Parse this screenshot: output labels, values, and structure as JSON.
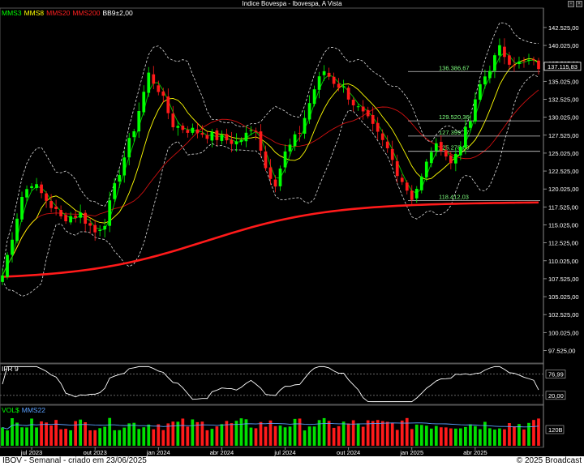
{
  "window": {
    "title": "Indice Bovespa - Ibovespa, A Vista",
    "buttons": [
      "▫",
      "×"
    ]
  },
  "legend": [
    {
      "label": "MMS3",
      "color": "#00ff00"
    },
    {
      "label": "MMS8",
      "color": "#ffff00"
    },
    {
      "label": "MMS20",
      "color": "#ff2020"
    },
    {
      "label": "MMS200",
      "color": "#ff2020"
    },
    {
      "label": "BB9±2,00",
      "color": "#ffffff"
    }
  ],
  "footer": {
    "left": "IBOV - Semanal - criado em 23/06/2025",
    "right": "© 2025 Broadcast"
  },
  "chart_data": [
    {
      "type": "candlestick",
      "title": "Indice Bovespa - Ibovespa, A Vista",
      "ylim": [
        96000,
        145000
      ],
      "y_ticks": [
        "142.525,00",
        "140.025,00",
        "137.525,00",
        "135.025,00",
        "132.525,00",
        "130.025,00",
        "127.525,00",
        "125.025,00",
        "122.525,00",
        "120.025,00",
        "117.525,00",
        "115.025,00",
        "112.525,00",
        "110.025,00",
        "107.525,00",
        "105.025,00",
        "102.525,00",
        "100.025,00",
        "97.525,00"
      ],
      "y_tick_values": [
        142525,
        140025,
        137525,
        135025,
        132525,
        130025,
        127525,
        125025,
        122525,
        120025,
        117525,
        115025,
        112525,
        110025,
        107525,
        105025,
        102525,
        100025,
        97525
      ],
      "x_ticks": [
        "jul 2023",
        "out 2023",
        "jan 2024",
        "abr 2024",
        "jul 2024",
        "out 2024",
        "jan 2025",
        "abr 2025"
      ],
      "x_tick_index": [
        6,
        19,
        32,
        45,
        58,
        71,
        84,
        97
      ],
      "n_weeks": 111,
      "current_price": "137.115,83",
      "current_value": 137116,
      "levels": [
        {
          "label": "136.386,67",
          "value": 136387
        },
        {
          "label": "129.520,36",
          "value": 129520
        },
        {
          "label": "127.399,17",
          "value": 127399
        },
        {
          "label": "125.278,00",
          "value": 125278
        },
        {
          "label": "118.412,03",
          "value": 118412
        }
      ],
      "mms200_range": [
        107800,
        118200
      ]
    },
    {
      "type": "line",
      "title": "IFR 9",
      "ylim": [
        0,
        100
      ],
      "ref_lines": [
        76.99,
        20.0
      ],
      "y_ticks": [
        "76,99",
        "20,00"
      ]
    },
    {
      "type": "bar",
      "title": "VOL$",
      "series_label": "MMS22",
      "y_ticks": [
        "120B"
      ]
    }
  ]
}
